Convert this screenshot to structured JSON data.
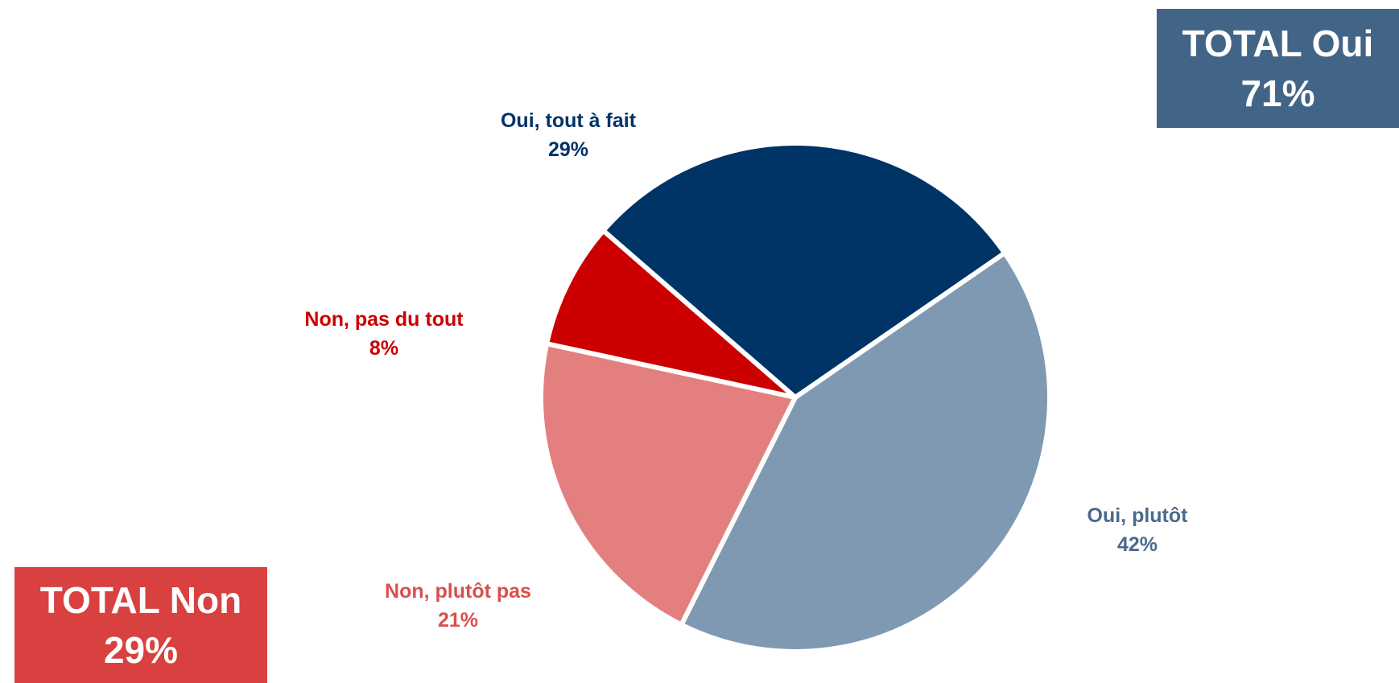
{
  "chart_data": {
    "type": "pie",
    "slices": [
      {
        "label": "Oui, tout à fait",
        "value": 29,
        "value_label": "29%",
        "color": "#003366"
      },
      {
        "label": "Oui, plutôt",
        "value": 42,
        "value_label": "42%",
        "color": "#8099B3"
      },
      {
        "label": "Non, plutôt pas",
        "value": 21,
        "value_label": "21%",
        "color": "#E37F7F"
      },
      {
        "label": "Non, pas du tout",
        "value": 8,
        "value_label": "8%",
        "color": "#CC0000"
      }
    ],
    "label_colors": {
      "oui_tout_a_fait": "#003366",
      "oui_plutot": "#4B6A8C",
      "non_plutot_pas": "#D94F4F",
      "non_pas_du_tout": "#CC0000"
    }
  },
  "totals": {
    "oui": {
      "title": "TOTAL Oui",
      "value": "71%",
      "color": "#426487"
    },
    "non": {
      "title": "TOTAL Non",
      "value": "29%",
      "color": "#D94040"
    }
  }
}
